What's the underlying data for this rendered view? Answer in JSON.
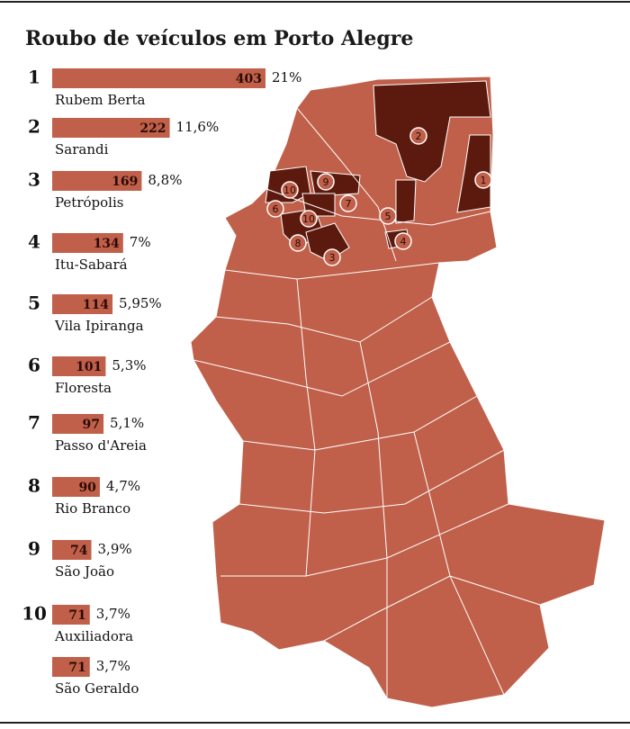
{
  "chart_data": {
    "type": "bar",
    "title": "Roubo de veículos em Porto Alegre",
    "ranks": [
      1,
      2,
      3,
      4,
      5,
      6,
      7,
      8,
      9,
      10,
      null
    ],
    "categories": [
      "Rubem Berta",
      "Sarandi",
      "Petrópolis",
      "Itu-Sabará",
      "Vila Ipiranga",
      "Floresta",
      "Passo d'Areia",
      "Rio Branco",
      "São João",
      "Auxiliadora",
      "São Geraldo"
    ],
    "values": [
      403,
      222,
      169,
      134,
      114,
      101,
      97,
      90,
      74,
      71,
      71
    ],
    "shares": [
      21,
      11.6,
      8.8,
      7,
      5.95,
      5.3,
      5.1,
      4.7,
      3.9,
      3.7,
      3.7
    ],
    "share_labels": [
      "21%",
      "11,6%",
      "8,8%",
      "7%",
      "5,95%",
      "5,3%",
      "5,1%",
      "4,7%",
      "3,9%",
      "3,7%",
      "3,7%"
    ],
    "color": "#c0604a",
    "map_markers": [
      "1",
      "2",
      "3",
      "4",
      "5",
      "6",
      "7",
      "8",
      "9",
      "10",
      "10"
    ]
  }
}
